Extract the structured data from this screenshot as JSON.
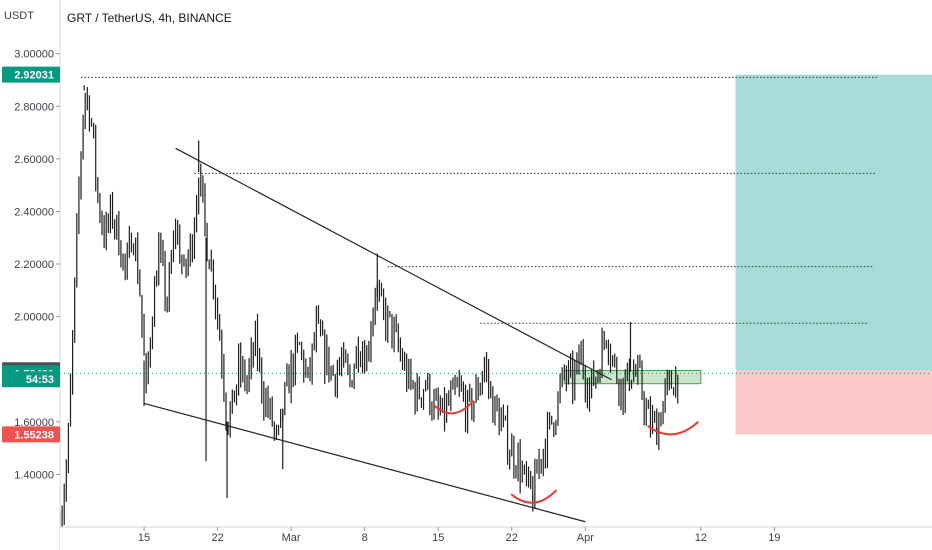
{
  "header": {
    "symbol_title": "GRT / TetherUS, 4h, BINANCE",
    "currency": "USDT"
  },
  "colors": {
    "bull_target": "#26a69a",
    "bear_stop": "#ef5350",
    "price_teal": "#089981",
    "candle": "#1e1e1e"
  },
  "chart_data": {
    "type": "candlestick",
    "title": "GRT / TetherUS, 4h, BINANCE",
    "ylabel": "USDT",
    "ylim": [
      1.2,
      3.09
    ],
    "y_ticks": [
      "1.40000",
      "1.60000",
      "1.80000",
      "2.00000",
      "2.20000",
      "2.40000",
      "2.60000",
      "2.80000",
      "3.00000"
    ],
    "y_tick_values": [
      1.4,
      1.6,
      1.8,
      2.0,
      2.2,
      2.4,
      2.6,
      2.8,
      3.0
    ],
    "x_ticks": [
      "15",
      "22",
      "Mar",
      "8",
      "15",
      "22",
      "Apr",
      "12",
      "19"
    ],
    "x_tick_days": [
      15,
      22,
      29,
      36,
      43,
      50,
      57,
      68,
      75
    ],
    "xlim_days": [
      7,
      90
    ],
    "price_badges": [
      {
        "label": "2.92031",
        "value": 2.92031,
        "color": "#089981",
        "kind": "target"
      },
      {
        "label": "1.79619",
        "value": 1.79619,
        "color": "#4a4e59",
        "kind": "open"
      },
      {
        "label": "1.78431",
        "value": 1.78431,
        "color": "#089981",
        "kind": "last"
      },
      {
        "label": "54:53",
        "value": 1.762,
        "color": "#089981",
        "kind": "countdown"
      },
      {
        "label": "1.55238",
        "value": 1.55238,
        "color": "#ef5350",
        "kind": "stop"
      }
    ],
    "price_path": [
      [
        7.0,
        1.22
      ],
      [
        7.7,
        1.45
      ],
      [
        8.2,
        1.9
      ],
      [
        8.7,
        2.4
      ],
      [
        9.3,
        2.86
      ],
      [
        9.9,
        2.78
      ],
      [
        10.6,
        2.45
      ],
      [
        11.3,
        2.3
      ],
      [
        11.9,
        2.4
      ],
      [
        12.6,
        2.3
      ],
      [
        13.3,
        2.15
      ],
      [
        13.9,
        2.35
      ],
      [
        14.6,
        2.1
      ],
      [
        15.2,
        1.7
      ],
      [
        15.6,
        1.95
      ],
      [
        16.4,
        2.25
      ],
      [
        17.2,
        2.05
      ],
      [
        18.0,
        2.35
      ],
      [
        18.8,
        2.15
      ],
      [
        19.6,
        2.3
      ],
      [
        20.2,
        2.55
      ],
      [
        20.9,
        2.3
      ],
      [
        21.6,
        2.15
      ],
      [
        22.4,
        1.85
      ],
      [
        22.9,
        1.6
      ],
      [
        23.4,
        1.65
      ],
      [
        24.0,
        1.8
      ],
      [
        24.8,
        1.75
      ],
      [
        25.6,
        1.9
      ],
      [
        26.4,
        1.7
      ],
      [
        27.2,
        1.6
      ],
      [
        27.7,
        1.5
      ],
      [
        28.2,
        1.65
      ],
      [
        29.0,
        1.8
      ],
      [
        29.8,
        1.88
      ],
      [
        30.6,
        1.75
      ],
      [
        31.4,
        1.95
      ],
      [
        32.2,
        1.85
      ],
      [
        33.0,
        1.78
      ],
      [
        33.8,
        1.82
      ],
      [
        34.6,
        1.75
      ],
      [
        35.4,
        1.9
      ],
      [
        36.2,
        1.85
      ],
      [
        37.0,
        2.1
      ],
      [
        37.8,
        2.0
      ],
      [
        38.6,
        1.95
      ],
      [
        39.4,
        1.85
      ],
      [
        40.2,
        1.75
      ],
      [
        41.0,
        1.7
      ],
      [
        41.8,
        1.75
      ],
      [
        42.6,
        1.65
      ],
      [
        43.4,
        1.62
      ],
      [
        44.2,
        1.68
      ],
      [
        45.0,
        1.72
      ],
      [
        45.8,
        1.64
      ],
      [
        46.6,
        1.7
      ],
      [
        47.4,
        1.82
      ],
      [
        48.2,
        1.66
      ],
      [
        49.0,
        1.6
      ],
      [
        49.8,
        1.5
      ],
      [
        50.6,
        1.45
      ],
      [
        51.4,
        1.35
      ],
      [
        52.0,
        1.32
      ],
      [
        52.6,
        1.45
      ],
      [
        53.4,
        1.55
      ],
      [
        54.2,
        1.65
      ],
      [
        55.0,
        1.78
      ],
      [
        55.8,
        1.75
      ],
      [
        56.6,
        1.85
      ],
      [
        57.4,
        1.72
      ],
      [
        58.2,
        1.8
      ],
      [
        59.0,
        1.95
      ],
      [
        59.8,
        1.8
      ],
      [
        60.6,
        1.72
      ],
      [
        61.4,
        1.8
      ],
      [
        62.2,
        1.75
      ],
      [
        63.0,
        1.6
      ],
      [
        63.8,
        1.58
      ],
      [
        64.6,
        1.7
      ],
      [
        65.4,
        1.76
      ],
      [
        66.0,
        1.78
      ]
    ],
    "spike_lows": [
      [
        15.0,
        1.66
      ],
      [
        20.9,
        1.45
      ],
      [
        22.9,
        1.31
      ],
      [
        28.2,
        1.42
      ],
      [
        52.0,
        1.3
      ],
      [
        63.8,
        1.55
      ]
    ],
    "spike_highs": [
      [
        9.3,
        2.88
      ],
      [
        20.2,
        2.67
      ],
      [
        37.2,
        2.24
      ],
      [
        61.3,
        1.98
      ]
    ],
    "drawings": {
      "upper_trendline": [
        [
          18.0,
          2.64
        ],
        [
          59.5,
          1.76
        ]
      ],
      "lower_trendline": [
        [
          15.0,
          1.67
        ],
        [
          57.0,
          1.22
        ]
      ],
      "resistance_levels": [
        {
          "value": 2.91,
          "from": 9.0,
          "to": 84.8
        },
        {
          "value": 2.545,
          "from": 19.8,
          "to": 84.6
        },
        {
          "value": 2.19,
          "from": 38.2,
          "to": 84.5
        },
        {
          "value": 1.975,
          "from": 47.0,
          "to": 83.9
        }
      ],
      "entry_zone": {
        "from": 55.0,
        "to": 68.0,
        "low": 1.745,
        "high": 1.795
      },
      "long_position": {
        "from": 71.3,
        "to": 90.0,
        "target": 2.92031,
        "entry": 1.79619,
        "stop": 1.55238
      },
      "bottom_marks": [
        {
          "from": 42.6,
          "to": 46.3,
          "low": 1.625
        },
        {
          "from": 50.0,
          "to": 54.2,
          "low": 1.285
        },
        {
          "from": 63.0,
          "to": 67.7,
          "low": 1.545
        }
      ]
    }
  }
}
